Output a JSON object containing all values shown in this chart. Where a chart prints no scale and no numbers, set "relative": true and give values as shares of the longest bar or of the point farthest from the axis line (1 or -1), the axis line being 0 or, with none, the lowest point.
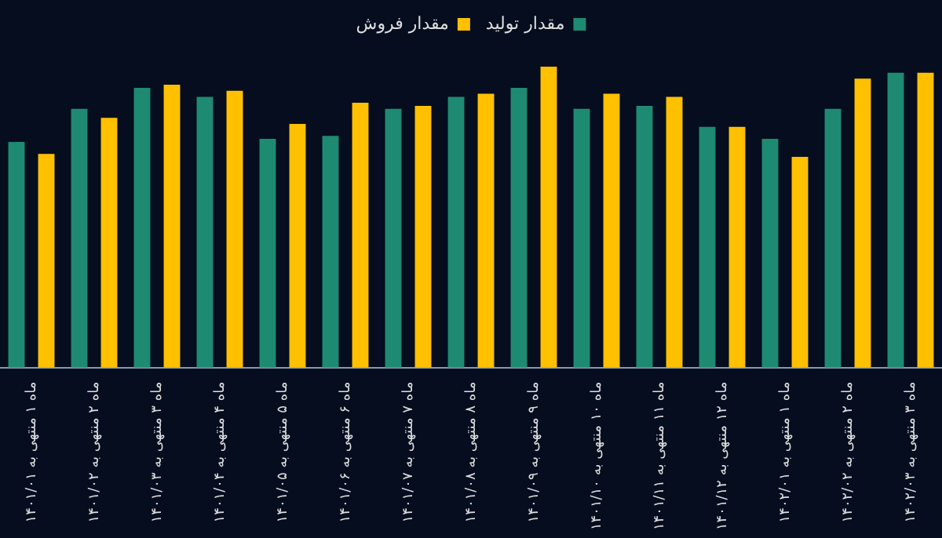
{
  "chart_data": {
    "type": "bar",
    "relative": true,
    "legend": "top",
    "grid": false,
    "categories": [
      "ماه ۱ منتهی به ۱۴۰۱/۰۱",
      "ماه ۲ منتهی به ۱۴۰۱/۰۲",
      "ماه ۳ منتهی به ۱۴۰۱/۰۳",
      "ماه ۴ منتهی به ۱۴۰۱/۰۴",
      "ماه ۵ منتهی به ۱۴۰۱/۰۵",
      "ماه ۶ منتهی به ۱۴۰۱/۰۶",
      "ماه ۷ منتهی به ۱۴۰۱/۰۷",
      "ماه ۸ منتهی به ۱۴۰۱/۰۸",
      "ماه ۹ منتهی به ۱۴۰۱/۰۹",
      "ماه ۱۰ منتهی به ۱۴۰۱/۱۰",
      "ماه ۱۱ منتهی به ۱۴۰۱/۱۱",
      "ماه ۱۲ منتهی به ۱۴۰۱/۱۲",
      "ماه ۱ منتهی به ۱۴۰۲/۰۱",
      "ماه ۲ منتهی به ۱۴۰۲/۰۲",
      "ماه ۳ منتهی به ۱۴۰۲/۰۳"
    ],
    "series": [
      {
        "name": "مقدار تولید",
        "color": "#1e8a72",
        "values": [
          0.75,
          0.86,
          0.93,
          0.9,
          0.76,
          0.77,
          0.86,
          0.9,
          0.93,
          0.86,
          0.87,
          0.8,
          0.76,
          0.86,
          0.98
        ]
      },
      {
        "name": "مقدار فروش",
        "color": "#ffc000",
        "values": [
          0.71,
          0.83,
          0.94,
          0.92,
          0.81,
          0.88,
          0.87,
          0.91,
          1,
          0.91,
          0.9,
          0.8,
          0.7,
          0.96,
          0.98
        ]
      }
    ]
  }
}
